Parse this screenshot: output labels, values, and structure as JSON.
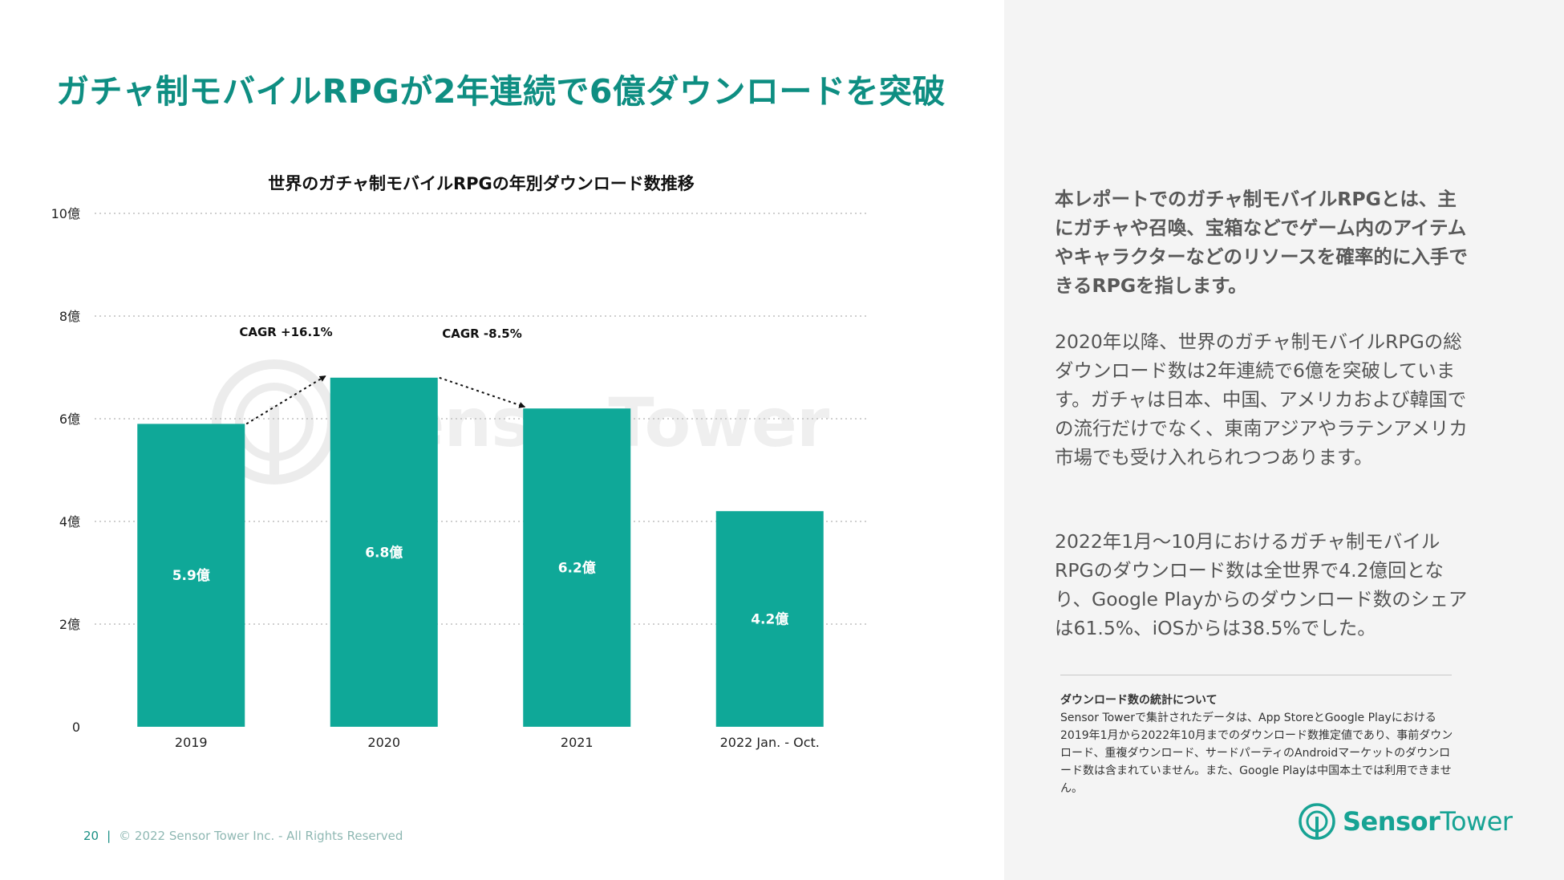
{
  "page": {
    "title": "ガチャ制モバイルRPGが2年連続で6億ダウンロードを突破",
    "footer": {
      "page_number": "20",
      "separator": "|",
      "copyright": "© 2022 Sensor Tower Inc. - All Rights Reserved"
    }
  },
  "chart_data": {
    "type": "bar",
    "title": "世界のガチャ制モバイルRPGの年別ダウンロード数推移",
    "xlabel": "",
    "ylabel": "",
    "categories": [
      "2019",
      "2020",
      "2021",
      "2022 Jan. - Oct."
    ],
    "values": [
      5.9,
      6.8,
      6.2,
      4.2
    ],
    "value_labels": [
      "5.9億",
      "6.8億",
      "6.2億",
      "4.2億"
    ],
    "unit": "億",
    "ylim": [
      0,
      10
    ],
    "y_ticks": [
      0,
      2,
      4,
      6,
      8,
      10
    ],
    "y_tick_labels": [
      "0",
      "2億",
      "4億",
      "6億",
      "8億",
      "10億"
    ],
    "grid": true,
    "bar_color": "#0fa898",
    "annotations": [
      {
        "text": "CAGR +16.1%",
        "from_category": 0,
        "to_category": 1
      },
      {
        "text": "CAGR -8.5%",
        "from_category": 1,
        "to_category": 2
      }
    ]
  },
  "sidebar": {
    "paragraph_1": "本レポートでのガチャ制モバイルRPGとは、主にガチャや召喚、宝箱などでゲーム内のアイテムやキャラクターなどのリソースを確率的に入手できるRPGを指します。",
    "paragraph_2": "2020年以降、世界のガチャ制モバイルRPGの総ダウンロード数は2年連続で6億を突破しています。ガチャは日本、中国、アメリカおよび韓国での流行だけでなく、東南アジアやラテンアメリカ市場でも受け入れられつつあります。",
    "paragraph_3": "2022年1月〜10月におけるガチャ制モバイルRPGのダウンロード数は全世界で4.2億回となり、Google Playからのダウンロード数のシェアは61.5%、iOSからは38.5%でした。",
    "note": {
      "title": "ダウンロード数の統計について",
      "body": "Sensor Towerで集計されたデータは、App StoreとGoogle Playにおける2019年1月から2022年10月までのダウンロード数推定値であり、事前ダウンロード、重複ダウンロード、サードパーティのAndroidマーケットのダウンロード数は含まれていません。また、Google Playは中国本土では利用できません。"
    }
  },
  "watermark": {
    "text": "SensorTower"
  },
  "logo": {
    "text_bold": "Sensor",
    "text_regular": "Tower",
    "icon": "sensor-tower-logo-icon"
  },
  "colors": {
    "accent": "#0e8e82",
    "bar": "#0fa898",
    "right_panel_bg": "#f4f4f4"
  }
}
